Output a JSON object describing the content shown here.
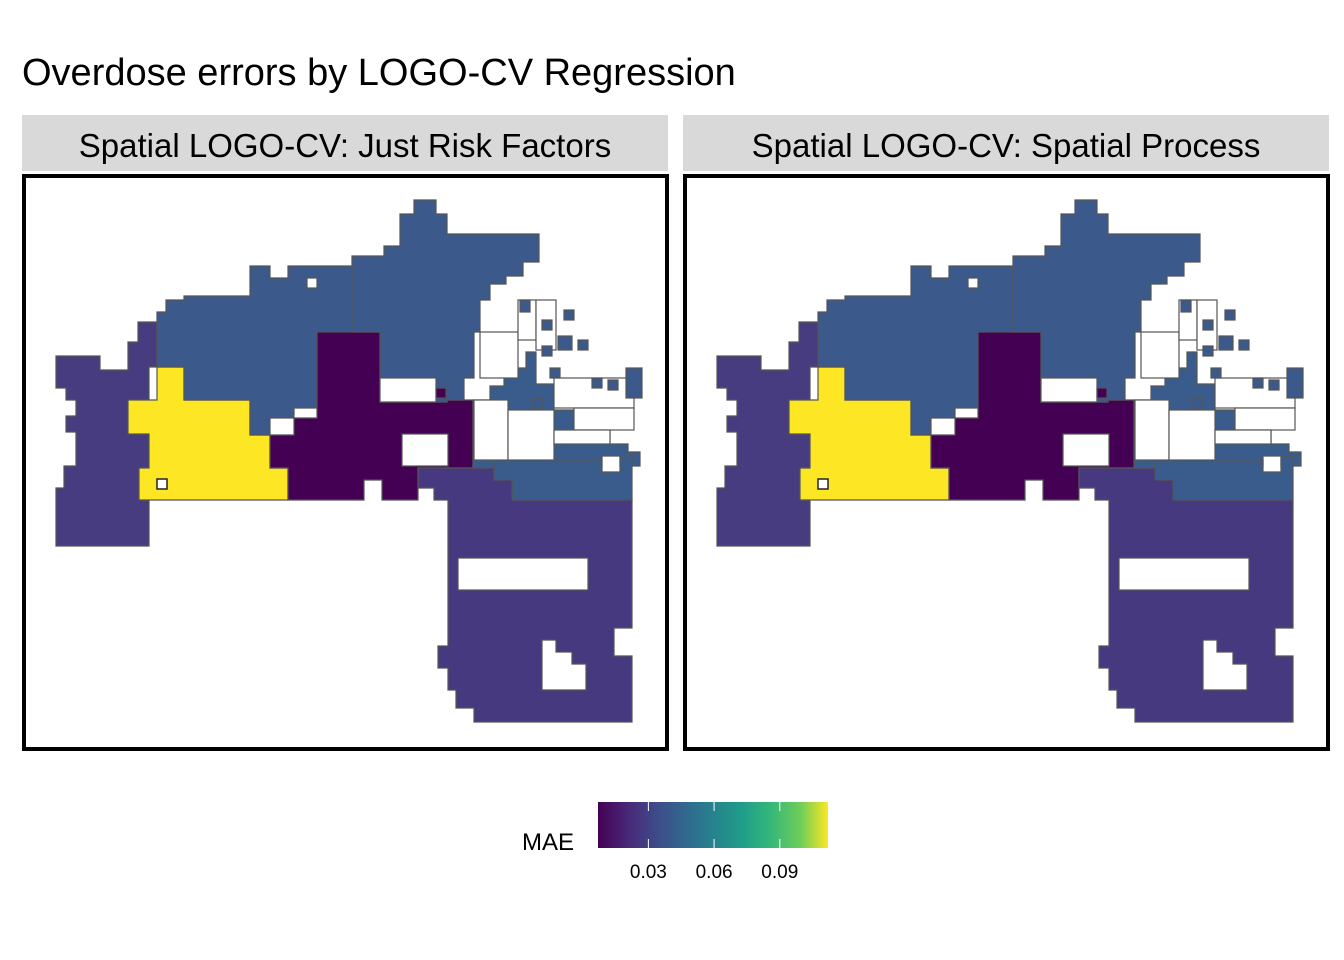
{
  "title": "Overdose errors by LOGO-CV Regression",
  "facets": [
    {
      "label": "Spatial LOGO-CV: Just Risk Factors"
    },
    {
      "label": "Spatial LOGO-CV: Spatial Process"
    }
  ],
  "colors": {
    "west": "#463C7F",
    "central_yellow": "#FDE725",
    "central_dark": "#440154",
    "north": "#3B5A8B",
    "east_north": "#3A5C8C",
    "south": "#46397F",
    "border": "#555555",
    "hole": "#FFFFFF"
  },
  "legend": {
    "title": "MAE",
    "ticks": [
      "0.03",
      "0.06",
      "0.09"
    ],
    "tick_values": [
      0.03,
      0.06,
      0.09
    ],
    "range": [
      0.007,
      0.112
    ],
    "palette": "viridis"
  }
}
